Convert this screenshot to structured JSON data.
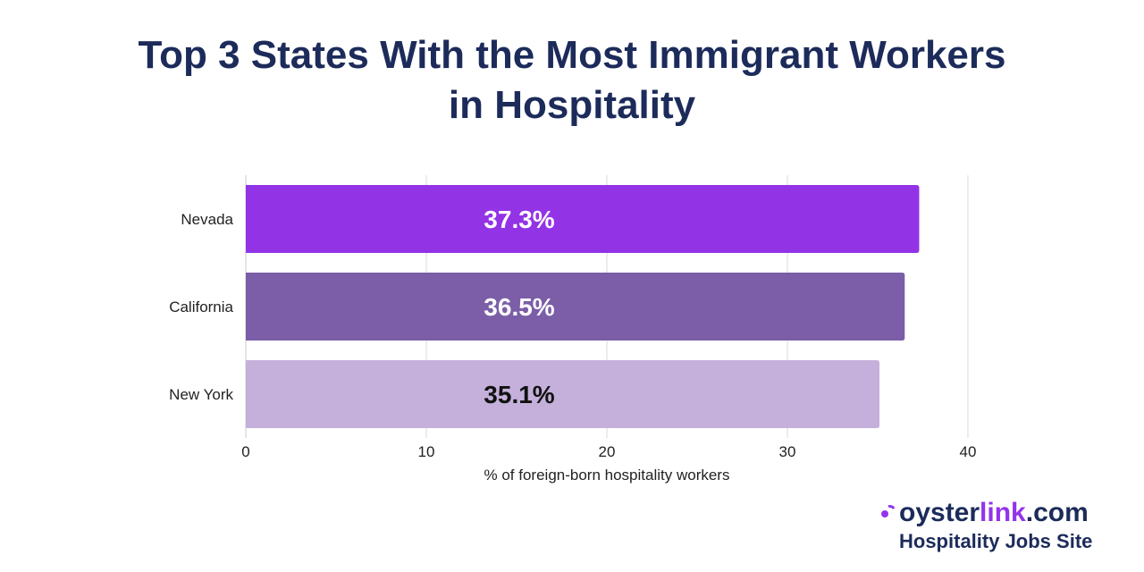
{
  "chart_data": {
    "type": "bar",
    "orientation": "horizontal",
    "title": "Top 3 States With the Most Immigrant Workers in Hospitality",
    "title_lines": [
      "Top 3 States With the Most Immigrant Workers",
      "in Hospitality"
    ],
    "categories": [
      "Nevada",
      "California",
      "New York"
    ],
    "values": [
      37.3,
      36.5,
      35.1
    ],
    "data_labels": [
      "37.3%",
      "36.5%",
      "35.1%"
    ],
    "bar_colors": [
      "#9333e6",
      "#7b5ea7",
      "#c4b0da"
    ],
    "label_colors": [
      "#ffffff",
      "#ffffff",
      "#111111"
    ],
    "xlabel": "% of foreign-born hospitality workers",
    "ylabel": "",
    "xlim": [
      0,
      40
    ],
    "xticks": [
      0,
      10,
      20,
      30,
      40
    ],
    "grid": true
  },
  "brand": {
    "name_prefix": "oyster",
    "name_accent": "link",
    "name_suffix": ".com",
    "tagline": "Hospitality Jobs Site",
    "accent_color": "#9333ea",
    "text_color": "#1c2b5a"
  }
}
